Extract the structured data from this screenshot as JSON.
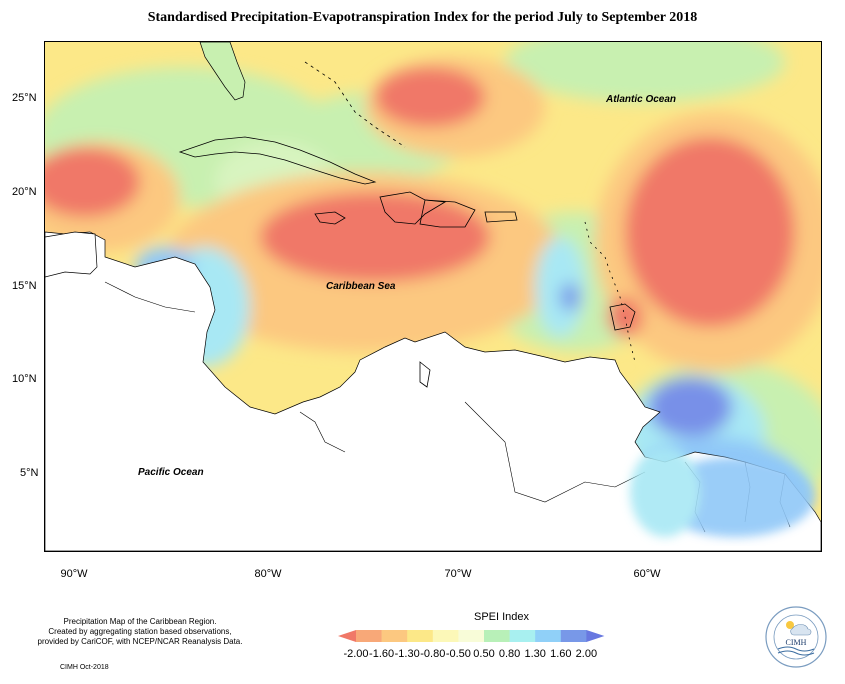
{
  "title": "Standardised Precipitation-Evapotranspiration Index for the period July to September 2018",
  "map": {
    "lat_labels": [
      "25°N",
      "20°N",
      "15°N",
      "10°N",
      "5°N"
    ],
    "lon_labels": [
      "90°W",
      "80°W",
      "70°W",
      "60°W"
    ],
    "place_labels": {
      "atlantic": "Atlantic Ocean",
      "caribbean": "Caribbean Sea",
      "pacific": "Pacific Ocean"
    }
  },
  "footer": {
    "note_line1": "Precipitation Map of the Caribbean Region.",
    "note_line2": "Created by aggregating station based observations,",
    "note_line3": "provided by CariCOF, with NCEP/NCAR Reanalysis Data.",
    "credit": "CIMH Oct-2018"
  },
  "legend": {
    "title": "SPEI Index",
    "ticks": [
      "-2.00",
      "-1.60",
      "-1.30",
      "-0.80",
      "-0.50",
      "0.50",
      "0.80",
      "1.30",
      "1.60",
      "2.00"
    ],
    "colors": [
      "#f07868",
      "#f8a878",
      "#fcc880",
      "#fce888",
      "#fcf8b8",
      "#f8fcd8",
      "#b8f0b8",
      "#a8f0f0",
      "#90d0f8",
      "#7898e8",
      "#6878e0"
    ]
  },
  "logo": {
    "text": "CIMH"
  }
}
